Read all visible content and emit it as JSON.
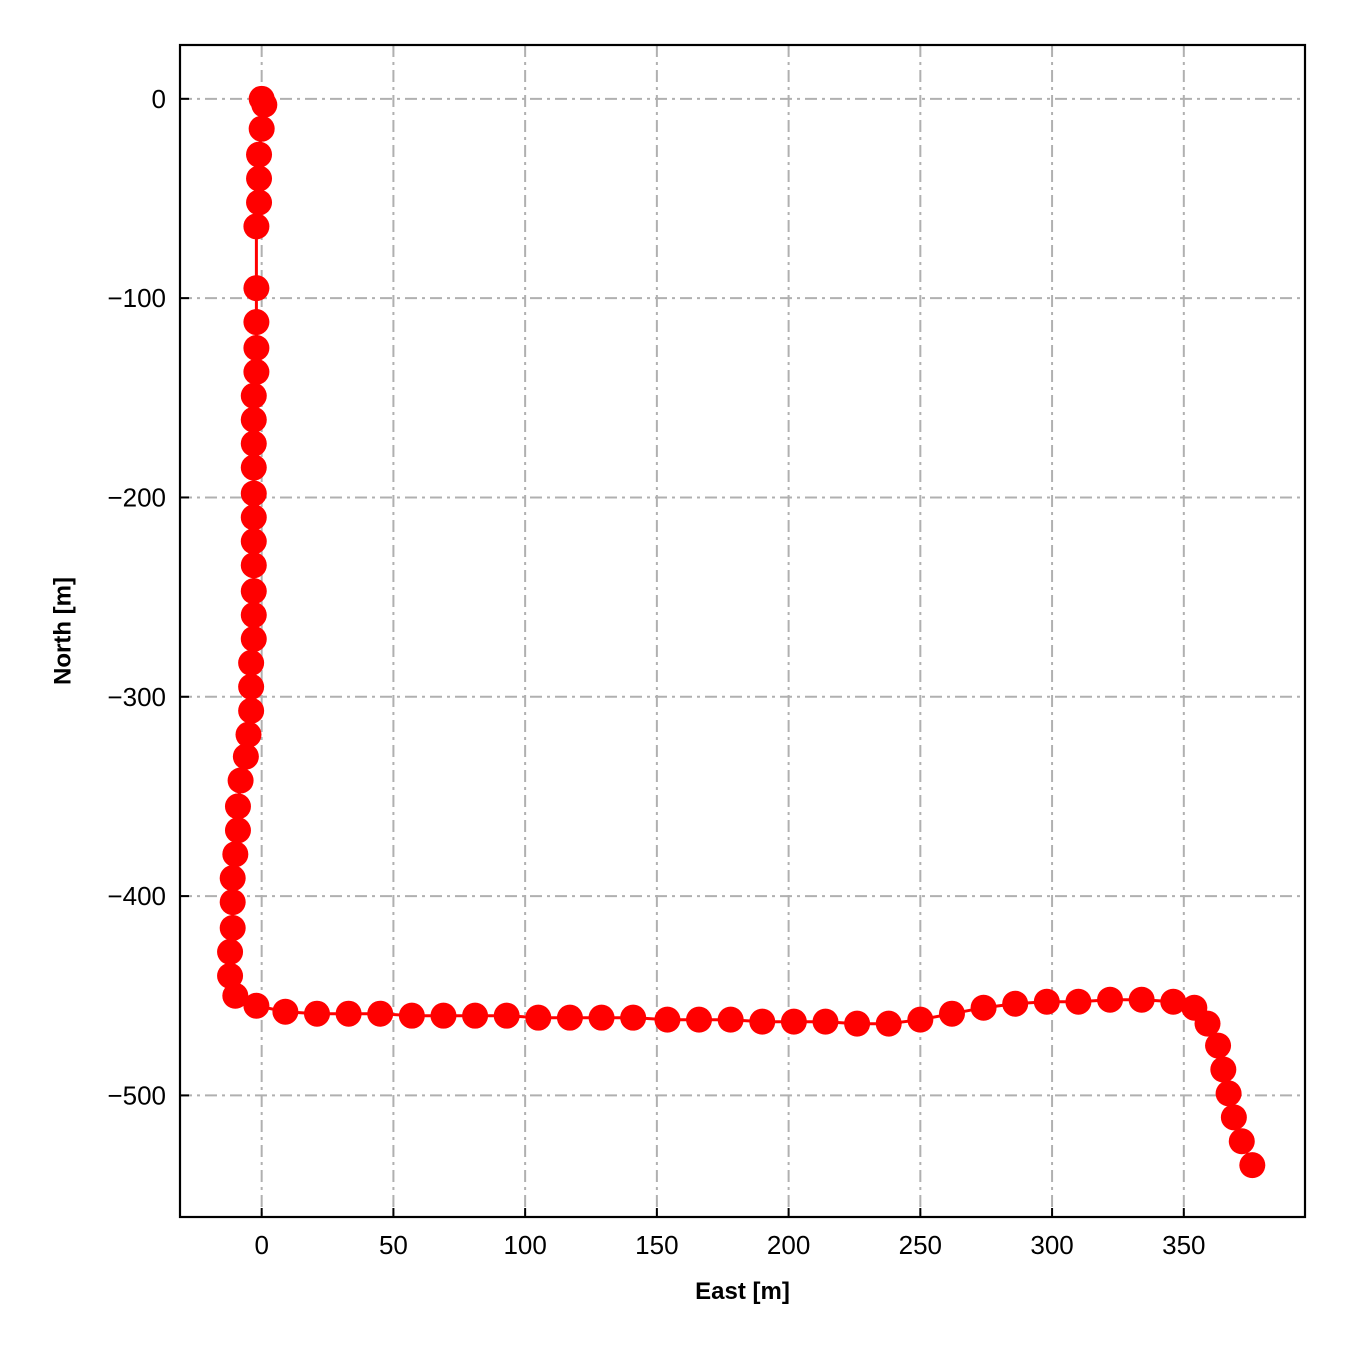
{
  "chart_data": {
    "type": "line",
    "xlabel": "East [m]",
    "ylabel": "North [m]",
    "xlim": [
      -31,
      396
    ],
    "ylim": [
      -561,
      27
    ],
    "xticks": [
      0,
      50,
      100,
      150,
      200,
      250,
      300,
      350
    ],
    "yticks": [
      0,
      -100,
      -200,
      -300,
      -400,
      -500
    ],
    "grid": true,
    "grid_style": "dash-dot",
    "colors": {
      "series": "#ff0000",
      "grid": "#b0b0b0",
      "axes": "#000000"
    },
    "series": [
      {
        "marker": "circle",
        "x": [
          0,
          1,
          0,
          -1,
          -1,
          -1,
          -2,
          -2,
          -2,
          -2,
          -2,
          -3,
          -3,
          -3,
          -3,
          -3,
          -3,
          -3,
          -3,
          -3,
          -3,
          -3,
          -4,
          -4,
          -4,
          -5,
          -6,
          -8,
          -9,
          -9,
          -10,
          -11,
          -11,
          -11,
          -12,
          -12,
          -10,
          -2,
          9,
          21,
          33,
          45,
          57,
          69,
          81,
          93,
          105,
          117,
          129,
          141,
          154,
          166,
          178,
          190,
          202,
          214,
          226,
          238,
          250,
          262,
          274,
          286,
          298,
          310,
          322,
          334,
          346,
          354,
          359,
          363,
          365,
          367,
          369,
          372,
          376
        ],
        "y": [
          0,
          -3,
          -15,
          -28,
          -40,
          -52,
          -64,
          -95,
          -112,
          -125,
          -137,
          -149,
          -161,
          -173,
          -185,
          -198,
          -210,
          -222,
          -234,
          -247,
          -259,
          -271,
          -283,
          -295,
          -307,
          -319,
          -330,
          -342,
          -355,
          -367,
          -379,
          -391,
          -403,
          -416,
          -428,
          -440,
          -450,
          -455,
          -458,
          -459,
          -459,
          -459,
          -460,
          -460,
          -460,
          -460,
          -461,
          -461,
          -461,
          -461,
          -462,
          -462,
          -462,
          -463,
          -463,
          -463,
          -464,
          -464,
          -462,
          -459,
          -456,
          -454,
          -453,
          -453,
          -452,
          -452,
          -453,
          -456,
          -464,
          -475,
          -487,
          -499,
          -511,
          -523,
          -535
        ]
      }
    ]
  }
}
